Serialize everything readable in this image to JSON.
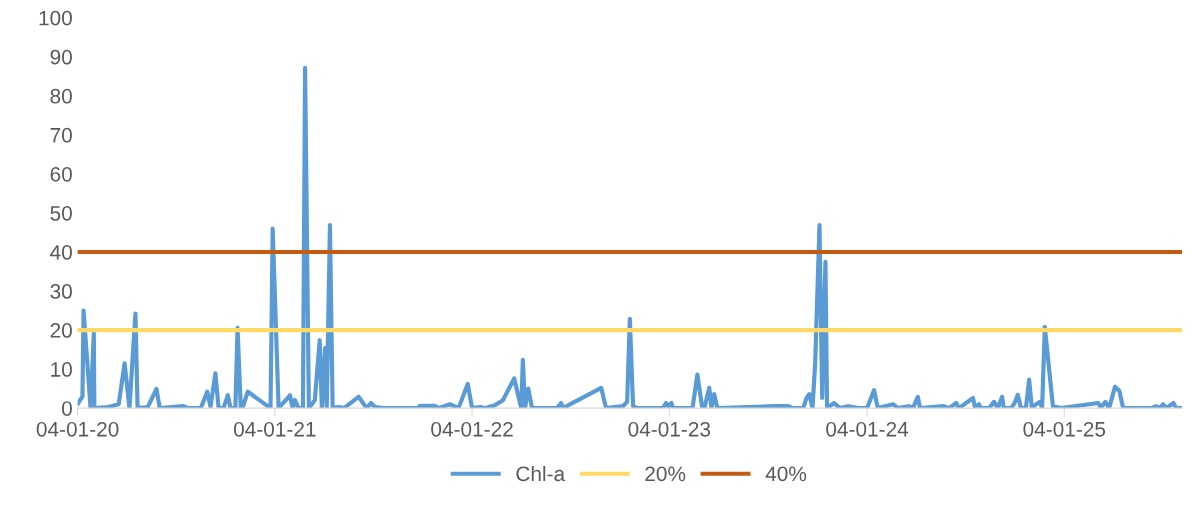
{
  "chart_data": {
    "type": "line",
    "xlim": [
      "2020-04-01",
      "2025-11-05"
    ],
    "xticks": [
      {
        "value": "2020-04-01",
        "label": "04-01-20"
      },
      {
        "value": "2021-04-01",
        "label": "04-01-21"
      },
      {
        "value": "2022-04-01",
        "label": "04-01-22"
      },
      {
        "value": "2023-04-01",
        "label": "04-01-23"
      },
      {
        "value": "2024-04-01",
        "label": "04-01-24"
      },
      {
        "value": "2025-04-01",
        "label": "04-01-25"
      }
    ],
    "ylim": [
      0,
      100
    ],
    "yticks": [
      0,
      10,
      20,
      30,
      40,
      50,
      60,
      70,
      80,
      90,
      100
    ],
    "grid": false,
    "legend": "bottom",
    "marker": "none",
    "line_style": "solid",
    "series": [
      {
        "name": "Chl-a",
        "color": "#5b9bd5",
        "x": [
          "2020-04-01",
          "2020-04-10",
          "2020-04-12",
          "2020-04-25",
          "2020-05-01",
          "2020-05-02",
          "2020-05-28",
          "2020-06-16",
          "2020-06-27",
          "2020-07-06",
          "2020-07-17",
          "2020-07-21",
          "2020-08-09",
          "2020-08-25",
          "2020-08-31",
          "2020-10-14",
          "2020-10-23",
          "2020-11-15",
          "2020-11-27",
          "2020-12-03",
          "2020-12-12",
          "2020-12-18",
          "2020-12-27",
          "2021-01-04",
          "2021-01-09",
          "2021-01-18",
          "2021-01-22",
          "2021-01-28",
          "2021-01-31",
          "2021-02-10",
          "2021-03-24",
          "2021-03-28",
          "2021-04-08",
          "2021-04-29",
          "2021-05-04",
          "2021-05-08",
          "2021-05-15",
          "2021-05-23",
          "2021-05-27",
          "2021-06-03",
          "2021-06-14",
          "2021-06-23",
          "2021-06-27",
          "2021-07-03",
          "2021-07-06",
          "2021-07-12",
          "2021-07-17",
          "2021-07-28",
          "2021-08-07",
          "2021-09-03",
          "2021-09-18",
          "2021-09-26",
          "2021-10-03",
          "2021-10-20",
          "2021-12-24",
          "2021-12-25",
          "2022-01-22",
          "2022-01-29",
          "2022-02-19",
          "2022-03-07",
          "2022-03-24",
          "2022-04-01",
          "2022-04-16",
          "2022-04-25",
          "2022-05-14",
          "2022-05-28",
          "2022-06-18",
          "2022-07-01",
          "2022-07-04",
          "2022-07-08",
          "2022-07-14",
          "2022-07-21",
          "2022-09-05",
          "2022-09-13",
          "2022-09-16",
          "2022-11-26",
          "2022-12-05",
          "2023-01-05",
          "2023-01-13",
          "2023-01-18",
          "2023-01-24",
          "2023-01-31",
          "2023-03-20",
          "2023-03-26",
          "2023-03-30",
          "2023-04-05",
          "2023-04-08",
          "2023-05-14",
          "2023-05-23",
          "2023-06-01",
          "2023-06-05",
          "2023-06-14",
          "2023-06-18",
          "2023-06-23",
          "2023-06-29",
          "2023-10-09",
          "2023-10-29",
          "2023-11-07",
          "2023-11-16",
          "2023-12-05",
          "2023-12-11",
          "2023-12-16",
          "2023-12-22",
          "2023-12-27",
          "2024-01-04",
          "2024-01-09",
          "2024-01-15",
          "2024-01-18",
          "2024-01-31",
          "2024-02-11",
          "2024-02-26",
          "2024-03-16",
          "2024-04-01",
          "2024-04-14",
          "2024-04-21",
          "2024-05-19",
          "2024-05-28",
          "2024-06-18",
          "2024-06-25",
          "2024-07-04",
          "2024-07-08",
          "2024-08-21",
          "2024-08-31",
          "2024-09-13",
          "2024-09-18",
          "2024-10-14",
          "2024-10-18",
          "2024-10-25",
          "2024-10-29",
          "2024-11-13",
          "2024-11-22",
          "2024-11-29",
          "2024-12-07",
          "2024-12-10",
          "2024-12-23",
          "2024-12-29",
          "2025-01-05",
          "2025-01-11",
          "2025-01-20",
          "2025-01-26",
          "2025-01-31",
          "2025-02-08",
          "2025-02-15",
          "2025-02-19",
          "2025-02-24",
          "2025-03-11",
          "2025-03-26",
          "2025-06-03",
          "2025-06-08",
          "2025-06-16",
          "2025-06-23",
          "2025-07-04",
          "2025-07-12",
          "2025-07-19",
          "2025-08-03",
          "2025-09-09",
          "2025-09-18",
          "2025-09-24",
          "2025-10-01",
          "2025-10-07",
          "2025-10-20",
          "2025-10-25",
          "2025-11-03"
        ],
        "values": [
          1,
          3,
          25,
          0,
          19.3,
          0,
          0.3,
          1,
          11.5,
          0,
          24.2,
          0,
          0.3,
          4.9,
          0,
          0.5,
          0,
          0,
          4.2,
          0.3,
          8.9,
          0,
          0,
          3.3,
          0,
          0,
          20.6,
          0,
          0,
          4.2,
          0,
          46,
          0,
          3.3,
          0,
          2.1,
          0,
          0,
          87.2,
          0,
          2,
          17.4,
          0,
          15.4,
          0,
          46.9,
          0,
          0.3,
          0,
          2.9,
          0,
          1.3,
          0.3,
          0,
          0,
          0.6,
          0.6,
          0,
          1,
          0,
          6.2,
          0,
          0.3,
          0,
          0.8,
          2,
          7.6,
          0,
          12.4,
          0,
          5,
          0,
          0,
          1.3,
          0,
          5.2,
          0,
          0.5,
          1.6,
          22.9,
          0.5,
          0,
          0,
          1.3,
          0.5,
          1.3,
          0,
          0,
          8.6,
          0,
          0,
          5.2,
          0,
          3.6,
          0,
          0.5,
          0.5,
          0.5,
          0,
          0,
          2.6,
          3.6,
          0,
          11.4,
          46.9,
          2.6,
          37.5,
          0,
          1.3,
          0,
          0.5,
          0,
          0,
          4.6,
          0,
          1,
          0,
          0.5,
          0,
          2.9,
          0,
          0.5,
          0,
          1.3,
          0,
          2.6,
          0,
          1,
          0,
          0,
          1.6,
          0,
          2.9,
          0,
          0,
          1,
          3.4,
          0,
          0,
          7.3,
          0,
          1,
          1.6,
          0,
          20.8,
          0.5,
          0,
          1.3,
          0.2,
          1.6,
          0,
          5.5,
          4.4,
          0,
          0,
          0,
          0.5,
          0,
          1,
          0,
          1.3,
          0,
          0
        ]
      },
      {
        "name": "20%",
        "color": "#ffd966",
        "x": [
          "2020-04-01",
          "2025-11-05"
        ],
        "values": [
          20,
          20
        ]
      },
      {
        "name": "40%",
        "color": "#c55a11",
        "x": [
          "2020-04-01",
          "2025-11-05"
        ],
        "values": [
          40,
          40
        ]
      }
    ]
  }
}
